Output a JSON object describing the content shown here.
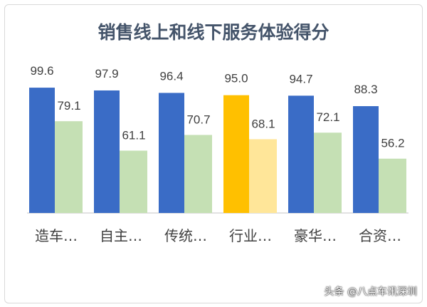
{
  "chart_data": {
    "type": "bar",
    "title": "销售线上和线下服务体验得分",
    "categories": [
      "造车…",
      "自主…",
      "传统…",
      "行业…",
      "豪华…",
      "合资…"
    ],
    "series": [
      {
        "values": [
          99.6,
          97.9,
          96.4,
          95.0,
          94.7,
          88.3
        ]
      },
      {
        "values": [
          79.1,
          61.1,
          70.7,
          68.1,
          72.1,
          56.2
        ]
      }
    ],
    "value_labels": [
      [
        "99.6",
        "97.9",
        "96.4",
        "95.0",
        "94.7",
        "88.3"
      ],
      [
        "79.1",
        "61.1",
        "70.7",
        "68.1",
        "72.1",
        "56.2"
      ]
    ],
    "ylim": [
      23,
      114
    ],
    "grid": false,
    "highlight_category": "行业…",
    "colors": {
      "series1": "#3a6cc6",
      "series2": "#c5e0b4",
      "highlight1": "#ffc000",
      "highlight2": "#ffe699",
      "text": "#404040",
      "axis": "#d9d9d9"
    }
  },
  "watermark": "头条 @八点车讯深圳"
}
